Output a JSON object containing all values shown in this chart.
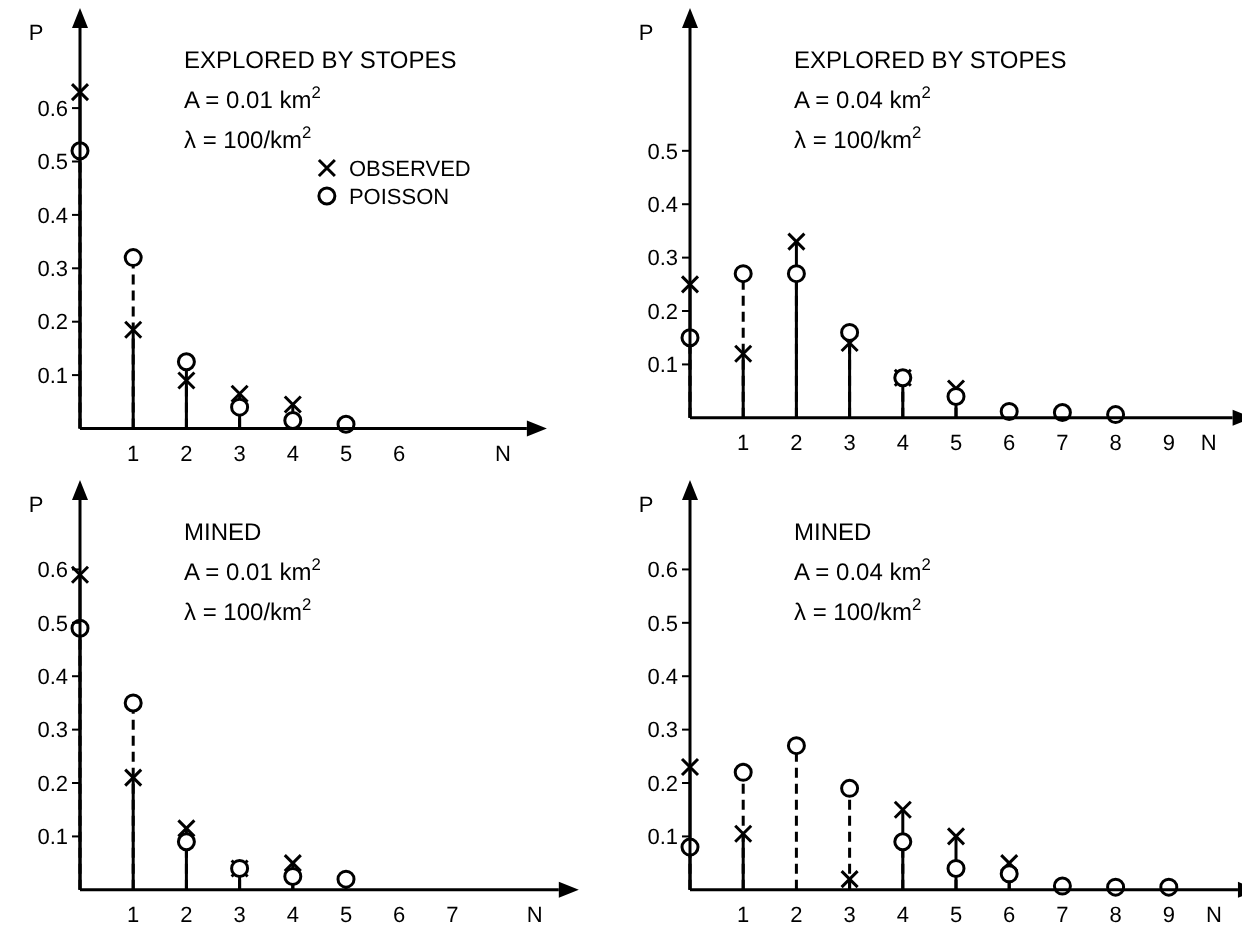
{
  "chart_data": [
    {
      "type": "lollipop",
      "xlabel": "N",
      "ylabel": "P",
      "x": [
        0,
        1,
        2,
        3,
        4,
        5
      ],
      "xlim": [
        0,
        8.4
      ],
      "xticks": [
        1,
        2,
        3,
        4,
        5,
        6
      ],
      "ylim": [
        0,
        0.75
      ],
      "yticks": [
        0.1,
        0.2,
        0.3,
        0.4,
        0.5,
        0.6
      ],
      "legend": "right",
      "grid": false,
      "annotations": [
        "EXPLORED BY STOPES",
        "A = 0.01 km$^{2}$",
        "λ = 100/km$^{2}$"
      ],
      "series": [
        {
          "name": "OBSERVED",
          "color": "#000000",
          "marker": "cross",
          "line_style": "solid",
          "values": [
            0.63,
            0.185,
            0.09,
            0.065,
            0.045,
            null
          ]
        },
        {
          "name": "POISSON",
          "color": "#000000",
          "marker": "circle",
          "line_style": "dashed",
          "values": [
            0.52,
            0.32,
            0.125,
            0.04,
            0.015,
            0.008
          ]
        }
      ]
    },
    {
      "type": "lollipop",
      "xlabel": "N",
      "ylabel": "P",
      "x": [
        0,
        1,
        2,
        3,
        4,
        5,
        6,
        7,
        8
      ],
      "xlim": [
        0,
        10.2
      ],
      "xticks": [
        1,
        2,
        3,
        4,
        5,
        6,
        7,
        8,
        9
      ],
      "ylim": [
        0,
        0.73
      ],
      "yticks": [
        0.1,
        0.2,
        0.3,
        0.4,
        0.5
      ],
      "grid": false,
      "annotations": [
        "EXPLORED BY STOPES",
        "A = 0.04 km$^{2}$",
        "λ = 100/km$^{2}$"
      ],
      "series": [
        {
          "color": "#000000",
          "marker": "cross",
          "line_style": "solid",
          "values": [
            0.25,
            0.12,
            0.33,
            0.14,
            0.075,
            0.055,
            null,
            null,
            null
          ]
        },
        {
          "color": "#000000",
          "marker": "circle",
          "line_style": "dashed",
          "values": [
            0.15,
            0.27,
            0.27,
            0.16,
            0.075,
            0.04,
            0.012,
            0.01,
            0.006
          ]
        }
      ]
    },
    {
      "type": "lollipop",
      "xlabel": "N",
      "ylabel": "P",
      "x": [
        0,
        1,
        2,
        3,
        4,
        5
      ],
      "xlim": [
        0,
        9
      ],
      "xticks": [
        1,
        2,
        3,
        4,
        5,
        6,
        7
      ],
      "ylim": [
        0,
        0.73
      ],
      "yticks": [
        0.1,
        0.2,
        0.3,
        0.4,
        0.5,
        0.6
      ],
      "grid": false,
      "annotations": [
        "MINED",
        "A = 0.01 km$^{2}$",
        "λ = 100/km$^{2}$"
      ],
      "series": [
        {
          "color": "#000000",
          "marker": "cross",
          "line_style": "solid",
          "values": [
            0.59,
            0.21,
            0.115,
            0.04,
            0.05,
            null
          ]
        },
        {
          "color": "#000000",
          "marker": "circle",
          "line_style": "dashed",
          "values": [
            0.49,
            0.35,
            0.09,
            0.04,
            0.025,
            0.02
          ]
        }
      ]
    },
    {
      "type": "lollipop",
      "xlabel": "N",
      "ylabel": "P",
      "x": [
        0,
        1,
        2,
        3,
        4,
        5,
        6,
        7,
        8,
        9
      ],
      "xlim": [
        0,
        10.3
      ],
      "xticks": [
        1,
        2,
        3,
        4,
        5,
        6,
        7,
        8,
        9
      ],
      "ylim": [
        0,
        0.73
      ],
      "yticks": [
        0.1,
        0.2,
        0.3,
        0.4,
        0.5,
        0.6
      ],
      "grid": false,
      "annotations": [
        "MINED",
        "A = 0.04 km$^{2}$",
        "λ = 100/km$^{2}$"
      ],
      "series": [
        {
          "color": "#000000",
          "marker": "cross",
          "line_style": "solid",
          "values": [
            0.23,
            0.105,
            null,
            0.02,
            0.15,
            0.1,
            0.05,
            null,
            null,
            null
          ]
        },
        {
          "color": "#000000",
          "marker": "circle",
          "line_style": "dashed",
          "values": [
            0.08,
            0.22,
            0.27,
            0.19,
            0.09,
            0.04,
            0.03,
            0.007,
            0.005,
            0.005
          ]
        }
      ]
    }
  ]
}
